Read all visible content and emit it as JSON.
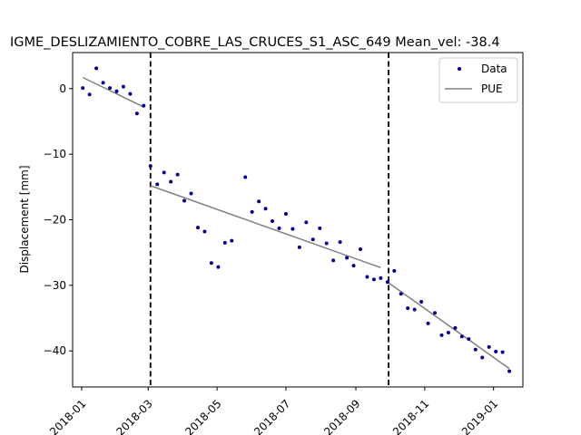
{
  "chart_data": {
    "type": "line",
    "title": "IGME_DESLIZAMIENTO_COBRE_LAS_CRUCES_S1_ASC_649     Mean_vel: -38.4",
    "xlabel": "",
    "ylabel": "Displacement [mm]",
    "xlim": [
      "2017-12-24",
      "2019-01-27"
    ],
    "ylim": [
      -45.5,
      5.5
    ],
    "x_ticks": [
      "2018-01-01",
      "2018-03-01",
      "2018-05-01",
      "2018-07-01",
      "2018-09-01",
      "2018-11-01",
      "2019-01-01"
    ],
    "x_tick_labels": [
      "2018-01",
      "2018-03",
      "2018-05",
      "2018-07",
      "2018-09",
      "2018-11",
      "2019-01"
    ],
    "y_ticks": [
      0,
      -10,
      -20,
      -30,
      -40
    ],
    "y_tick_labels": [
      "0",
      "−10",
      "−20",
      "−30",
      "−40"
    ],
    "grid": false,
    "legend_position": "top-right",
    "vlines": [
      "2018-03-03",
      "2018-09-30"
    ],
    "series": [
      {
        "name": "Data",
        "style": "points",
        "color": "#00008b",
        "points": [
          [
            "2018-01-02",
            0.1
          ],
          [
            "2018-01-08",
            -0.9
          ],
          [
            "2018-01-14",
            3.1
          ],
          [
            "2018-01-20",
            0.9
          ],
          [
            "2018-01-26",
            0.1
          ],
          [
            "2018-02-01",
            -0.4
          ],
          [
            "2018-02-07",
            0.3
          ],
          [
            "2018-02-13",
            -0.8
          ],
          [
            "2018-02-19",
            -3.8
          ],
          [
            "2018-02-25",
            -2.6
          ],
          [
            "2018-03-03",
            -11.8
          ],
          [
            "2018-03-09",
            -14.6
          ],
          [
            "2018-03-15",
            -12.8
          ],
          [
            "2018-03-21",
            -14.2
          ],
          [
            "2018-03-27",
            -13.1
          ],
          [
            "2018-04-02",
            -17.1
          ],
          [
            "2018-04-08",
            -16.0
          ],
          [
            "2018-04-14",
            -21.2
          ],
          [
            "2018-04-20",
            -21.8
          ],
          [
            "2018-04-26",
            -26.6
          ],
          [
            "2018-05-02",
            -27.2
          ],
          [
            "2018-05-08",
            -23.5
          ],
          [
            "2018-05-14",
            -23.2
          ],
          [
            "2018-05-26",
            -13.5
          ],
          [
            "2018-06-01",
            -18.8
          ],
          [
            "2018-06-07",
            -17.2
          ],
          [
            "2018-06-13",
            -18.3
          ],
          [
            "2018-06-19",
            -20.2
          ],
          [
            "2018-06-25",
            -21.3
          ],
          [
            "2018-07-01",
            -19.1
          ],
          [
            "2018-07-07",
            -21.4
          ],
          [
            "2018-07-13",
            -24.2
          ],
          [
            "2018-07-19",
            -20.4
          ],
          [
            "2018-07-25",
            -23.0
          ],
          [
            "2018-07-31",
            -21.3
          ],
          [
            "2018-08-06",
            -23.6
          ],
          [
            "2018-08-12",
            -26.2
          ],
          [
            "2018-08-18",
            -23.4
          ],
          [
            "2018-08-24",
            -25.8
          ],
          [
            "2018-08-30",
            -27.0
          ],
          [
            "2018-09-05",
            -24.5
          ],
          [
            "2018-09-11",
            -28.7
          ],
          [
            "2018-09-17",
            -29.1
          ],
          [
            "2018-09-23",
            -28.9
          ],
          [
            "2018-09-29",
            -29.5
          ],
          [
            "2018-10-05",
            -27.8
          ],
          [
            "2018-10-11",
            -31.3
          ],
          [
            "2018-10-17",
            -33.5
          ],
          [
            "2018-10-23",
            -33.7
          ],
          [
            "2018-10-29",
            -32.5
          ],
          [
            "2018-11-04",
            -35.8
          ],
          [
            "2018-11-10",
            -34.2
          ],
          [
            "2018-11-16",
            -37.6
          ],
          [
            "2018-11-22",
            -37.2
          ],
          [
            "2018-11-28",
            -36.5
          ],
          [
            "2018-12-04",
            -37.8
          ],
          [
            "2018-12-10",
            -38.2
          ],
          [
            "2018-12-16",
            -39.8
          ],
          [
            "2018-12-22",
            -41.0
          ],
          [
            "2018-12-28",
            -39.4
          ],
          [
            "2019-01-03",
            -40.1
          ],
          [
            "2019-01-09",
            -40.2
          ],
          [
            "2019-01-15",
            -43.1
          ]
        ]
      },
      {
        "name": "PUE",
        "style": "line",
        "color": "#808080",
        "segments": [
          [
            [
              "2018-01-02",
              1.7
            ],
            [
              "2018-02-25",
              -2.8
            ]
          ],
          [
            [
              "2018-03-03",
              -14.8
            ],
            [
              "2018-09-23",
              -27.3
            ]
          ],
          [
            [
              "2018-09-29",
              -29.5
            ],
            [
              "2019-01-15",
              -42.7
            ]
          ]
        ]
      }
    ]
  }
}
